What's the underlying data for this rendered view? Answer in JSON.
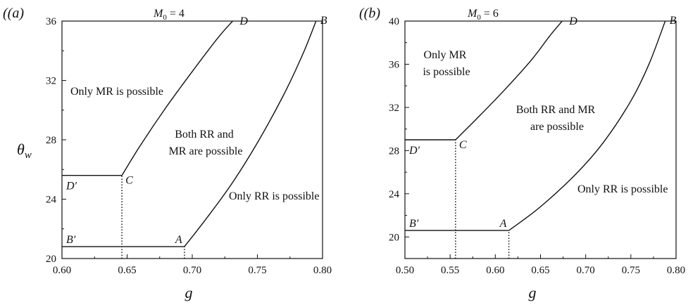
{
  "chart_data": [
    {
      "type": "line",
      "panel_label": "(a)",
      "mach_text": "M",
      "mach_sub": "0",
      "mach_value": " = 4",
      "xlabel": "g",
      "ylabel": "θ",
      "ylabel_sub": "w",
      "xlim": [
        0.6,
        0.8
      ],
      "ylim": [
        20,
        36
      ],
      "xticks": [
        "0.60",
        "0.65",
        "0.70",
        "0.75",
        "0.80"
      ],
      "yticks": [
        "20",
        "24",
        "28",
        "32",
        "36"
      ],
      "series": [
        {
          "x": [
            0.6,
            0.694
          ],
          "y": [
            20.8,
            20.8
          ]
        },
        {
          "x": [
            0.6,
            0.646
          ],
          "y": [
            25.6,
            25.6
          ]
        },
        {
          "x": [
            0.694,
            0.71,
            0.73,
            0.75,
            0.77,
            0.785,
            0.795
          ],
          "y": [
            20.8,
            22.6,
            25.0,
            27.8,
            31.0,
            33.8,
            36.0
          ]
        },
        {
          "x": [
            0.646,
            0.66,
            0.68,
            0.7,
            0.72,
            0.731
          ],
          "y": [
            25.6,
            27.6,
            30.2,
            32.6,
            34.9,
            36.0
          ]
        }
      ],
      "dotted_lines": [
        {
          "x": [
            0.646,
            0.646
          ],
          "y": [
            20,
            25.6
          ]
        },
        {
          "x": [
            0.694,
            0.694
          ],
          "y": [
            20,
            20.8
          ]
        }
      ],
      "points": [
        {
          "label": "A",
          "x": 0.694,
          "y": 20.8
        },
        {
          "label": "B",
          "x": 0.795,
          "y": 36.0
        },
        {
          "label": "C",
          "x": 0.646,
          "y": 25.6
        },
        {
          "label": "D",
          "x": 0.731,
          "y": 36.0
        },
        {
          "label": "B′",
          "x": 0.6,
          "y": 20.8
        },
        {
          "label": "D′",
          "x": 0.6,
          "y": 25.6
        }
      ],
      "annotations": [
        {
          "lines": [
            "Only MR is possible"
          ]
        },
        {
          "lines": [
            "Both RR and",
            "MR are possible"
          ]
        },
        {
          "lines": [
            "Only RR is possible"
          ]
        }
      ]
    },
    {
      "type": "line",
      "panel_label": "(b)",
      "mach_text": "M",
      "mach_sub": "0",
      "mach_value": " = 6",
      "xlabel": "g",
      "ylabel": "",
      "ylabel_sub": "",
      "xlim": [
        0.5,
        0.8
      ],
      "ylim": [
        18,
        40
      ],
      "xticks": [
        "0.50",
        "0.55",
        "0.60",
        "0.65",
        "0.70",
        "0.75",
        "0.80"
      ],
      "yticks": [
        "20",
        "24",
        "28",
        "32",
        "36",
        "40"
      ],
      "series": [
        {
          "x": [
            0.5,
            0.615
          ],
          "y": [
            20.6,
            20.6
          ]
        },
        {
          "x": [
            0.5,
            0.556
          ],
          "y": [
            29.0,
            29.0
          ]
        },
        {
          "x": [
            0.615,
            0.65,
            0.69,
            0.72,
            0.75,
            0.77,
            0.788
          ],
          "y": [
            20.6,
            22.8,
            25.9,
            28.8,
            32.6,
            36.0,
            40.0
          ]
        },
        {
          "x": [
            0.556,
            0.58,
            0.61,
            0.64,
            0.66,
            0.674
          ],
          "y": [
            29.0,
            31.0,
            33.6,
            36.4,
            38.6,
            40.0
          ]
        }
      ],
      "dotted_lines": [
        {
          "x": [
            0.556,
            0.556
          ],
          "y": [
            18,
            29.0
          ]
        },
        {
          "x": [
            0.615,
            0.615
          ],
          "y": [
            18,
            20.6
          ]
        }
      ],
      "points": [
        {
          "label": "A",
          "x": 0.615,
          "y": 20.6
        },
        {
          "label": "B",
          "x": 0.788,
          "y": 40.0
        },
        {
          "label": "C",
          "x": 0.556,
          "y": 29.0
        },
        {
          "label": "D",
          "x": 0.674,
          "y": 40.0
        },
        {
          "label": "B′",
          "x": 0.5,
          "y": 20.6
        },
        {
          "label": "D′",
          "x": 0.5,
          "y": 29.0
        }
      ],
      "annotations": [
        {
          "lines": [
            "Only MR",
            "is possible"
          ]
        },
        {
          "lines": [
            "Both RR and MR",
            "are possible"
          ]
        },
        {
          "lines": [
            "Only RR is possible"
          ]
        }
      ]
    }
  ]
}
